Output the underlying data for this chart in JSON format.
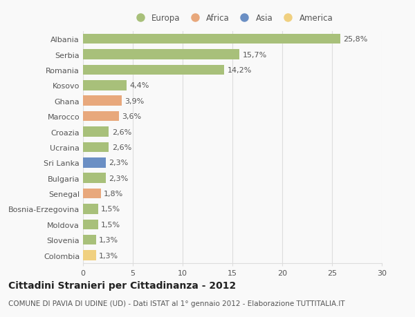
{
  "countries": [
    "Albania",
    "Serbia",
    "Romania",
    "Kosovo",
    "Ghana",
    "Marocco",
    "Croazia",
    "Ucraina",
    "Sri Lanka",
    "Bulgaria",
    "Senegal",
    "Bosnia-Erzegovina",
    "Moldova",
    "Slovenia",
    "Colombia"
  ],
  "values": [
    25.8,
    15.7,
    14.2,
    4.4,
    3.9,
    3.6,
    2.6,
    2.6,
    2.3,
    2.3,
    1.8,
    1.5,
    1.5,
    1.3,
    1.3
  ],
  "labels": [
    "25,8%",
    "15,7%",
    "14,2%",
    "4,4%",
    "3,9%",
    "3,6%",
    "2,6%",
    "2,6%",
    "2,3%",
    "2,3%",
    "1,8%",
    "1,5%",
    "1,5%",
    "1,3%",
    "1,3%"
  ],
  "continent": [
    "Europa",
    "Europa",
    "Europa",
    "Europa",
    "Africa",
    "Africa",
    "Europa",
    "Europa",
    "Asia",
    "Europa",
    "Africa",
    "Europa",
    "Europa",
    "Europa",
    "America"
  ],
  "colors": {
    "Europa": "#a8c07a",
    "Africa": "#e8a87c",
    "Asia": "#6b8fc4",
    "America": "#f0d080"
  },
  "legend_order": [
    "Europa",
    "Africa",
    "Asia",
    "America"
  ],
  "xlim": [
    0,
    30
  ],
  "xticks": [
    0,
    5,
    10,
    15,
    20,
    25,
    30
  ],
  "title": "Cittadini Stranieri per Cittadinanza - 2012",
  "subtitle": "COMUNE DI PAVIA DI UDINE (UD) - Dati ISTAT al 1° gennaio 2012 - Elaborazione TUTTITALIA.IT",
  "background_color": "#f9f9f9",
  "bar_height": 0.65,
  "grid_color": "#dddddd",
  "text_color": "#555555",
  "label_fontsize": 8,
  "tick_fontsize": 8,
  "title_fontsize": 10,
  "subtitle_fontsize": 7.5
}
